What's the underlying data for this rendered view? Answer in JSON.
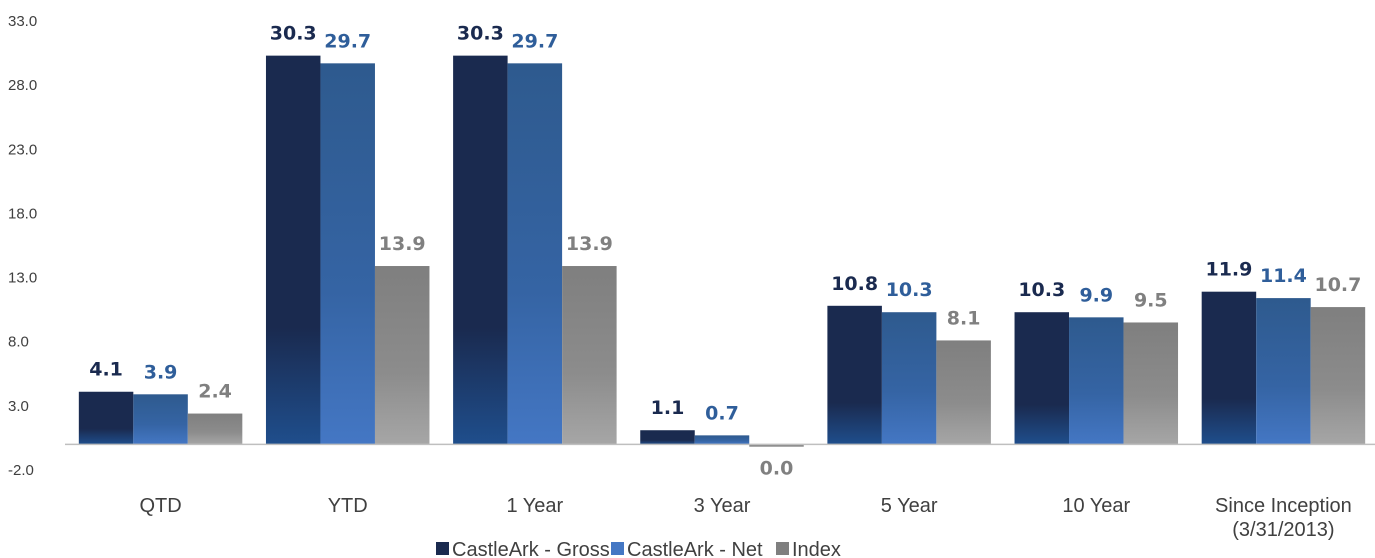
{
  "chart_data": {
    "type": "bar",
    "categories": [
      "QTD",
      "YTD",
      "1 Year",
      "3 Year",
      "5 Year",
      "10 Year",
      "Since Inception\n(3/31/2013)"
    ],
    "series": [
      {
        "name": "CastleArk - Gross",
        "values": [
          4.1,
          30.3,
          30.3,
          1.1,
          10.8,
          10.3,
          11.9
        ],
        "labels": [
          "4.1",
          "30.3",
          "30.3",
          "1.1",
          "10.8",
          "10.3",
          "11.9"
        ]
      },
      {
        "name": "CastleArk - Net",
        "values": [
          3.9,
          29.7,
          29.7,
          0.7,
          10.3,
          9.9,
          11.4
        ],
        "labels": [
          "3.9",
          "29.7",
          "29.7",
          "0.7",
          "10.3",
          "9.9",
          "11.4"
        ]
      },
      {
        "name": "Index",
        "values": [
          2.4,
          13.9,
          13.9,
          0.0,
          8.1,
          9.5,
          10.7
        ],
        "labels": [
          "2.4",
          "13.9",
          "13.9",
          "0.0",
          "8.1",
          "9.5",
          "10.7"
        ]
      }
    ],
    "yticks": [
      "33.0",
      "28.0",
      "23.0",
      "18.0",
      "13.0",
      "8.0",
      "3.0",
      "-2.0"
    ],
    "ytick_values": [
      33,
      28,
      23,
      18,
      13,
      8,
      3,
      -2
    ],
    "ylim": [
      -2,
      33
    ],
    "grid": false,
    "legend_position": "bottom",
    "colors": {
      "gross_top": "#1a2a4f",
      "gross_bottom": "#1f4e8c",
      "net_top": "#2e5a8e",
      "net_bottom": "#4477c4",
      "index_top": "#7f7f7f",
      "index_bottom": "#a6a6a6",
      "gross_label": "#1a2a4f",
      "net_label": "#2f5e9a",
      "index_label": "#808080",
      "axis": "#bfbfbf"
    }
  }
}
